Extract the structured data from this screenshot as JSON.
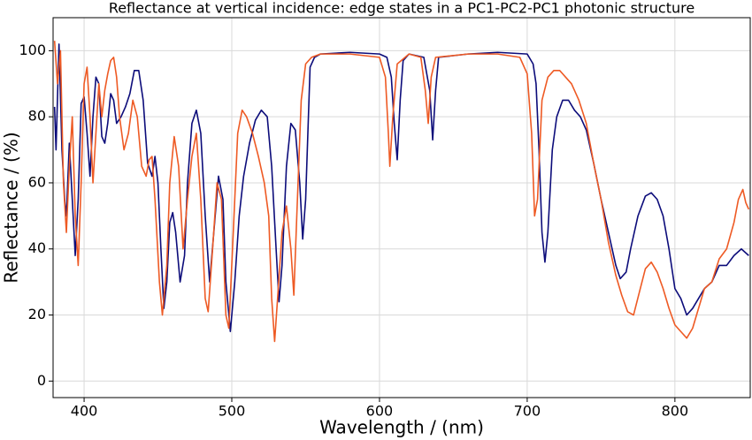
{
  "chart_data": {
    "type": "line",
    "title": "Reflectance at vertical incidence: edge states in a PC1-PC2-PC1 photonic structure",
    "x_label": "Wavelength / (nm)",
    "y_label": "Reflectance / (%)",
    "xlim": [
      379,
      851
    ],
    "ylim": [
      -5,
      110
    ],
    "xticks": [
      400,
      500,
      600,
      700,
      800
    ],
    "yticks": [
      0,
      20,
      40,
      60,
      80,
      100
    ],
    "grid": true,
    "series": [
      {
        "color": "#0c0c7a",
        "x": [
          380,
          381,
          383,
          385,
          387,
          388,
          390,
          392,
          394,
          396,
          398,
          400,
          402,
          404,
          406,
          408,
          410,
          412,
          414,
          416,
          418,
          420,
          422,
          425,
          428,
          431,
          434,
          437,
          440,
          443,
          446,
          448,
          450,
          452,
          454,
          456,
          458,
          460,
          462,
          465,
          468,
          470,
          473,
          476,
          479,
          482,
          485,
          488,
          491,
          494,
          496,
          499,
          502,
          505,
          508,
          512,
          516,
          520,
          524,
          527,
          530,
          532,
          534,
          537,
          540,
          543,
          546,
          548,
          550,
          553,
          556,
          560,
          580,
          600,
          605,
          608,
          610,
          612,
          614,
          616,
          620,
          630,
          634,
          636,
          638,
          640,
          660,
          680,
          700,
          704,
          706,
          708,
          710,
          712,
          714,
          717,
          720,
          724,
          728,
          732,
          736,
          740,
          745,
          750,
          755,
          760,
          763,
          767,
          770,
          775,
          780,
          784,
          788,
          792,
          796,
          800,
          804,
          808,
          812,
          816,
          820,
          825,
          830,
          835,
          840,
          845,
          850
        ],
        "values": [
          83,
          70,
          102,
          70,
          54,
          50,
          72,
          55,
          38,
          55,
          84,
          86,
          75,
          62,
          80,
          92,
          90,
          74,
          72,
          78,
          87,
          85,
          78,
          80,
          83,
          87,
          94,
          94,
          85,
          66,
          62,
          68,
          60,
          40,
          22,
          30,
          48,
          51,
          45,
          30,
          38,
          60,
          78,
          82,
          75,
          50,
          30,
          46,
          62,
          55,
          30,
          15,
          30,
          50,
          62,
          72,
          79,
          82,
          80,
          65,
          40,
          24,
          35,
          65,
          78,
          76,
          60,
          43,
          55,
          95,
          98,
          99,
          99.5,
          99,
          98,
          92,
          78,
          67,
          85,
          97,
          99,
          98,
          88,
          73,
          88,
          98,
          99,
          99.5,
          99,
          96,
          90,
          70,
          45,
          36,
          45,
          70,
          80,
          85,
          85,
          82,
          80,
          76,
          66,
          55,
          45,
          35,
          31,
          33,
          40,
          50,
          56,
          57,
          55,
          50,
          40,
          28,
          25,
          20,
          22,
          25,
          28,
          30,
          35,
          35,
          38,
          40,
          38
        ]
      },
      {
        "color": "#ee5a24",
        "x": [
          380,
          382,
          384,
          386,
          388,
          390,
          392,
          394,
          396,
          398,
          400,
          402,
          404,
          406,
          408,
          410,
          412,
          414,
          416,
          418,
          420,
          422,
          424,
          427,
          430,
          433,
          436,
          439,
          442,
          444,
          446,
          448,
          451,
          453,
          456,
          458,
          461,
          464,
          467,
          470,
          473,
          476,
          479,
          482,
          484,
          487,
          490,
          493,
          496,
          498,
          501,
          504,
          507,
          510,
          514,
          518,
          522,
          525,
          527,
          529,
          531,
          534,
          537,
          540,
          542,
          544,
          547,
          550,
          554,
          560,
          580,
          600,
          604,
          606,
          607,
          609,
          612,
          620,
          628,
          631,
          633,
          635,
          638,
          660,
          680,
          695,
          700,
          703,
          705,
          707,
          710,
          714,
          718,
          722,
          726,
          730,
          735,
          740,
          745,
          750,
          755,
          760,
          764,
          768,
          772,
          776,
          780,
          784,
          788,
          792,
          796,
          800,
          804,
          808,
          812,
          816,
          820,
          825,
          830,
          835,
          840,
          843,
          846,
          848,
          850
        ],
        "values": [
          103,
          90,
          100,
          60,
          45,
          65,
          80,
          50,
          35,
          60,
          90,
          95,
          80,
          60,
          75,
          90,
          80,
          88,
          93,
          97,
          98,
          92,
          80,
          70,
          75,
          85,
          80,
          65,
          62,
          67,
          68,
          55,
          30,
          20,
          35,
          60,
          74,
          65,
          40,
          55,
          68,
          75,
          55,
          25,
          21,
          40,
          60,
          55,
          20,
          16,
          45,
          75,
          82,
          80,
          75,
          68,
          60,
          50,
          25,
          12,
          25,
          45,
          53,
          40,
          26,
          50,
          85,
          96,
          98,
          99,
          99,
          98,
          92,
          75,
          65,
          80,
          96,
          99,
          98,
          88,
          78,
          92,
          98,
          99,
          99,
          98,
          93,
          75,
          50,
          55,
          85,
          92,
          94,
          94,
          92,
          90,
          85,
          78,
          66,
          55,
          42,
          32,
          26,
          21,
          20,
          27,
          34,
          36,
          33,
          28,
          22,
          17,
          15,
          13,
          16,
          22,
          28,
          30,
          37,
          40,
          48,
          55,
          58,
          54,
          52
        ]
      }
    ]
  }
}
